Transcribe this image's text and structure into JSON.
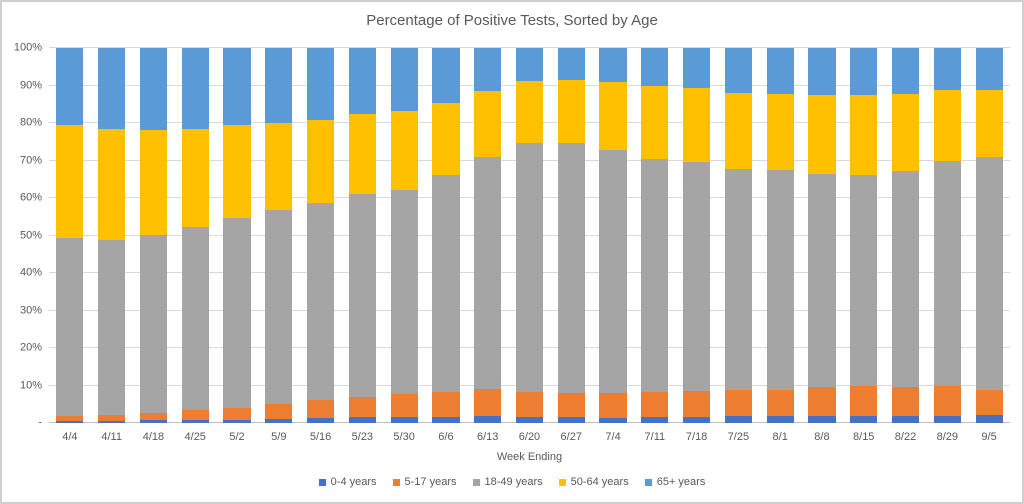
{
  "colors": {
    "background": "#FFFFFF",
    "frame_border": "#CFCFCF",
    "grid_line": "#D9D9D9",
    "axis_line": "#BFBFBF",
    "text": "#595959"
  },
  "chart_data": {
    "type": "bar",
    "stacked": true,
    "title": "Percentage of Positive Tests, Sorted by Age",
    "xlabel": "Week Ending",
    "ylabel": "",
    "ylim": [
      0,
      100
    ],
    "grid": true,
    "legend_position": "bottom",
    "y_ticks": [
      "100%",
      "90%",
      "80%",
      "70%",
      "60%",
      "50%",
      "40%",
      "30%",
      "20%",
      "10%",
      "-"
    ],
    "y_tick_values": [
      100,
      90,
      80,
      70,
      60,
      50,
      40,
      30,
      20,
      10,
      0
    ],
    "categories": [
      "4/4",
      "4/11",
      "4/18",
      "4/25",
      "5/2",
      "5/9",
      "5/16",
      "5/23",
      "5/30",
      "6/6",
      "6/13",
      "6/20",
      "6/27",
      "7/4",
      "7/11",
      "7/18",
      "7/25",
      "8/1",
      "8/8",
      "8/15",
      "8/22",
      "8/29",
      "9/5"
    ],
    "series": [
      {
        "name": "0-4 years",
        "color": "#4472C4",
        "values": [
          0.5,
          0.5,
          0.7,
          0.7,
          0.9,
          1.2,
          1.3,
          1.6,
          1.6,
          1.6,
          2.0,
          1.6,
          1.6,
          1.4,
          1.6,
          1.6,
          2.0,
          1.9,
          1.8,
          2.0,
          2.0,
          2.0,
          2.2
        ]
      },
      {
        "name": "5-17 years",
        "color": "#ED7D31",
        "values": [
          1.5,
          1.7,
          2.0,
          2.7,
          3.2,
          4.0,
          4.9,
          5.4,
          6.2,
          6.7,
          7.0,
          6.7,
          6.5,
          6.7,
          6.7,
          7.0,
          6.8,
          6.9,
          7.8,
          7.9,
          7.7,
          7.8,
          6.6
        ]
      },
      {
        "name": "18-49 years",
        "color": "#A5A5A5",
        "values": [
          47.3,
          46.5,
          47.5,
          48.8,
          50.5,
          51.7,
          52.4,
          54.1,
          54.4,
          57.9,
          61.9,
          66.4,
          66.6,
          64.6,
          62.1,
          60.9,
          58.9,
          58.8,
          56.9,
          56.3,
          57.4,
          60.2,
          62.1
        ]
      },
      {
        "name": "50-64 years",
        "color": "#FFC000",
        "values": [
          30.1,
          29.6,
          27.9,
          26.1,
          24.8,
          23.1,
          22.1,
          21.2,
          21.1,
          19.2,
          17.6,
          16.5,
          16.9,
          18.3,
          19.4,
          19.8,
          20.4,
          20.2,
          20.9,
          21.4,
          20.7,
          18.7,
          18.0
        ]
      },
      {
        "name": "65+ years",
        "color": "#5B9BD5",
        "values": [
          20.6,
          21.7,
          21.9,
          21.7,
          20.6,
          20.0,
          19.3,
          17.7,
          16.7,
          14.6,
          11.5,
          8.8,
          8.4,
          9.0,
          10.2,
          10.7,
          11.9,
          12.2,
          12.6,
          12.4,
          12.2,
          11.3,
          11.1
        ]
      }
    ]
  }
}
